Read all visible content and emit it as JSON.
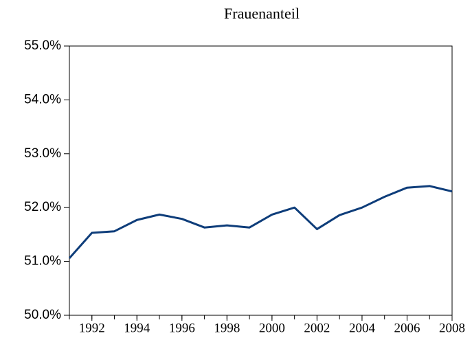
{
  "chart_data": {
    "type": "line",
    "title": "Frauenanteil",
    "x": [
      1991,
      1992,
      1993,
      1994,
      1995,
      1996,
      1997,
      1998,
      1999,
      2000,
      2001,
      2002,
      2003,
      2004,
      2005,
      2006,
      2007,
      2008
    ],
    "series": [
      {
        "name": "Frauenanteil",
        "color": "#0e3d7a",
        "values": [
          51.06,
          51.53,
          51.56,
          51.77,
          51.87,
          51.79,
          51.63,
          51.67,
          51.63,
          51.87,
          52.0,
          51.6,
          51.86,
          52.0,
          52.2,
          52.37,
          52.4,
          52.3
        ]
      }
    ],
    "xlim": [
      1991,
      2008
    ],
    "xticks": [
      1992,
      1994,
      1996,
      1998,
      2000,
      2002,
      2004,
      2006,
      2008
    ],
    "ylim": [
      50,
      55
    ],
    "yticks": [
      {
        "value": 50,
        "label": "50.0%"
      },
      {
        "value": 51,
        "label": "51.0%"
      },
      {
        "value": 52,
        "label": "52.0%"
      },
      {
        "value": 53,
        "label": "53.0%"
      },
      {
        "value": 54,
        "label": "54.0%"
      },
      {
        "value": 55,
        "label": "55.0%"
      }
    ]
  }
}
